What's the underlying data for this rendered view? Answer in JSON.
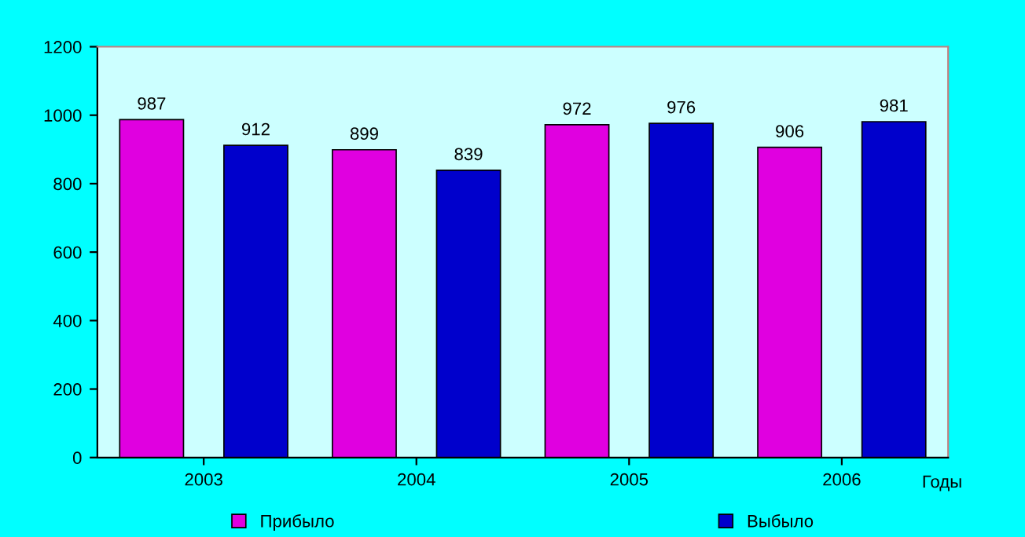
{
  "chart_data": {
    "type": "bar",
    "xlabel": "Годы",
    "categories": [
      "2003",
      "2004",
      "2005",
      "2006"
    ],
    "series": [
      {
        "name": "Прибыло",
        "color": "#e000e0",
        "values": [
          987,
          899,
          972,
          906
        ]
      },
      {
        "name": "Выбыло",
        "color": "#0000cc",
        "values": [
          912,
          839,
          976,
          981
        ]
      }
    ],
    "ylim": [
      0,
      1200
    ],
    "yticks": [
      0,
      200,
      400,
      600,
      800,
      1000,
      1200
    ],
    "data_labels": true,
    "grid": false,
    "legend": "bottom"
  }
}
